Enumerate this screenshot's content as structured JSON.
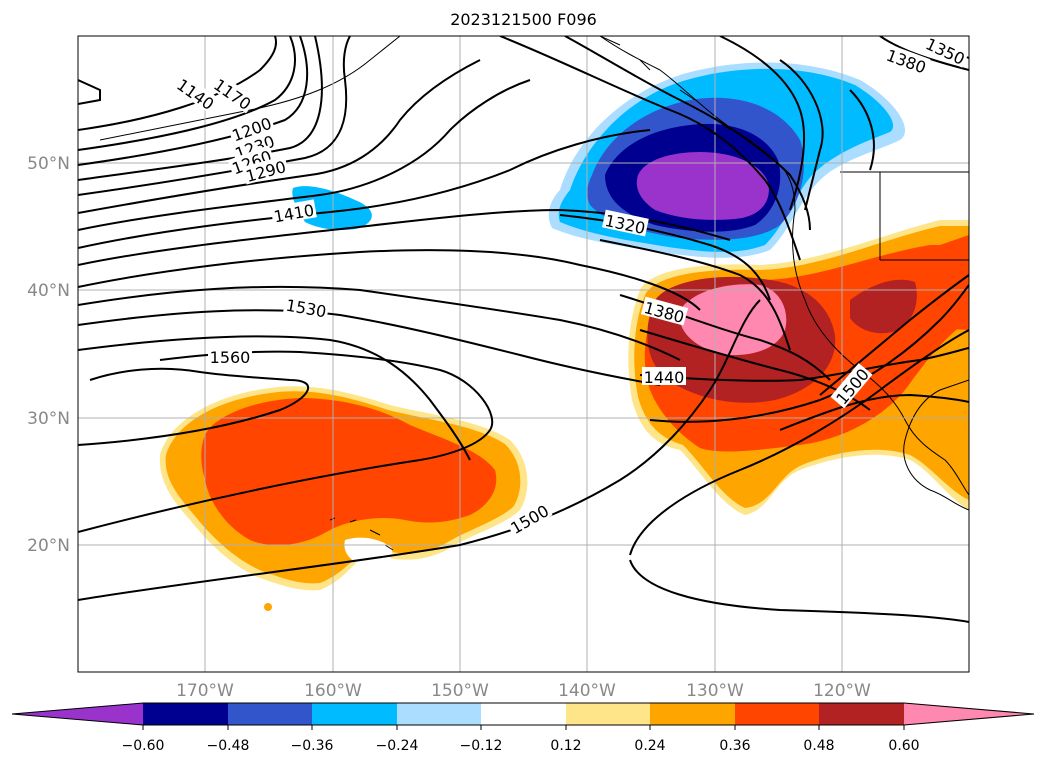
{
  "title": "2023121500 F096",
  "map": {
    "lat_labels": [
      "50°N",
      "40°N",
      "30°N",
      "20°N"
    ],
    "lon_labels": [
      "170°W",
      "160°W",
      "150°W",
      "140°W",
      "130°W",
      "120°W"
    ],
    "contour_labels": [
      "1140",
      "1170",
      "1200",
      "1230",
      "1260",
      "1290",
      "1320",
      "1350",
      "1380",
      "1410",
      "1440",
      "1500",
      "1530",
      "1560"
    ]
  },
  "colorbar": {
    "ticks": [
      "−0.60",
      "−0.48",
      "−0.36",
      "−0.24",
      "−0.12",
      "0.12",
      "0.24",
      "0.36",
      "0.48",
      "0.60"
    ],
    "colors": {
      "under": "#9933cc",
      "c1": "#000090",
      "c2": "#3355cc",
      "c3": "#00bbff",
      "c4": "#aaddff",
      "c5": "#ffffff",
      "c6": "#ffe58a",
      "c7": "#ffa500",
      "c8": "#ff4500",
      "c9": "#b22222",
      "over": "#ff88b0"
    }
  }
}
